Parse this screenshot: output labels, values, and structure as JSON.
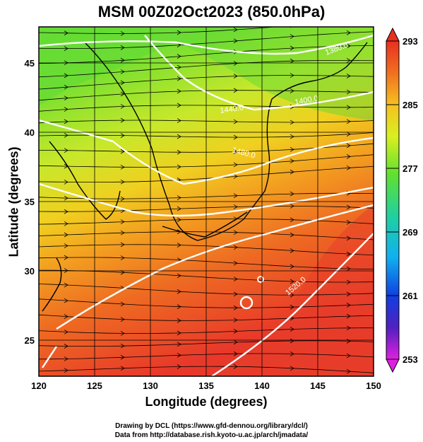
{
  "title": "MSM 00Z02Oct2023 (850.0hPa)",
  "axes": {
    "xlabel": "Longitude (degrees)",
    "ylabel": "Latitude  (degrees)",
    "x_ticks": [
      "120",
      "125",
      "130",
      "135",
      "140",
      "145",
      "150"
    ],
    "y_ticks": [
      "25",
      "30",
      "35",
      "40",
      "45"
    ]
  },
  "colorbar": {
    "ticks": [
      "293",
      "285",
      "277",
      "269",
      "261",
      "253"
    ],
    "colors": [
      "#e83020",
      "#f07020",
      "#f5c020",
      "#d8f020",
      "#60e030",
      "#20d0a0",
      "#10b0f0",
      "#1040e0",
      "#5020c0",
      "#e020e0"
    ]
  },
  "contour_labels": [
    "1380.0",
    "1400.0",
    "1440.0",
    "1480.0",
    "1520.0"
  ],
  "credits": {
    "line1": "Drawing by DCL (https://www.gfd-dennou.org/library/dcl/)",
    "line2": "Data from http://database.rish.kyoto-u.ac.jp/arch/jmadata/"
  },
  "chart_data": {
    "type": "heatmap",
    "title": "MSM 00Z02Oct2023 (850.0hPa)",
    "xlabel": "Longitude (degrees)",
    "ylabel": "Latitude  (degrees)",
    "xlim": [
      120,
      150
    ],
    "ylim": [
      22.4,
      47.6
    ],
    "x_ticks": [
      120,
      125,
      130,
      135,
      140,
      145,
      150
    ],
    "y_ticks": [
      25,
      30,
      35,
      40,
      45
    ],
    "colorbar_range": [
      253,
      293
    ],
    "colorbar_ticks": [
      293,
      285,
      277,
      269,
      261,
      253
    ],
    "contour_levels": [
      1380,
      1400,
      1440,
      1480,
      1520
    ],
    "grid": true
  }
}
